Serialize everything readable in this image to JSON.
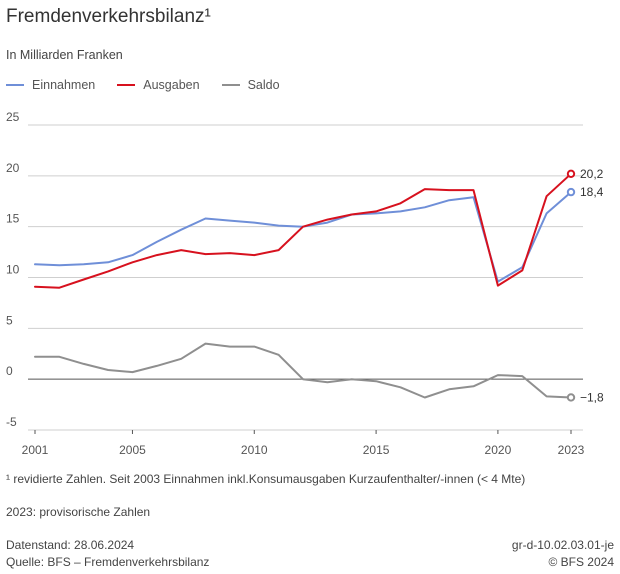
{
  "header": {
    "title": "Fremdenverkehrsbilanz¹",
    "subtitle": "In Milliarden Franken"
  },
  "footer": {
    "note1": "¹ revidierte Zahlen. Seit 2003 Einnahmen inkl.Konsumausgaben Kurzaufenthalter/-innen (< 4 Mte)",
    "note2": "2023: provisorische Zahlen",
    "datenstand": "Datenstand: 28.06.2024",
    "quelle": "Quelle: BFS – Fremdenverkehrsbilanz",
    "code": "gr-d-10.02.03.01-je",
    "copyright": "© BFS 2024"
  },
  "chart_data": {
    "type": "line",
    "x": [
      2001,
      2002,
      2003,
      2004,
      2005,
      2006,
      2007,
      2008,
      2009,
      2010,
      2011,
      2012,
      2013,
      2014,
      2015,
      2016,
      2017,
      2018,
      2019,
      2020,
      2021,
      2022,
      2023
    ],
    "xticks": [
      "2001",
      "2005",
      "2010",
      "2015",
      "2020",
      "2023"
    ],
    "yticks": [
      "-5",
      "0",
      "5",
      "10",
      "15",
      "20",
      "25"
    ],
    "ylim": [
      -5,
      25
    ],
    "xlim": [
      2001,
      2023
    ],
    "grid": true,
    "legend_position": "top-left",
    "series": [
      {
        "name": "Einnahmen",
        "color": "#6f8fd8",
        "values": [
          11.3,
          11.2,
          11.3,
          11.5,
          12.2,
          13.5,
          14.7,
          15.8,
          15.6,
          15.4,
          15.1,
          15.0,
          15.4,
          16.2,
          16.3,
          16.5,
          16.9,
          17.6,
          17.9,
          9.6,
          11.0,
          16.3,
          18.4
        ],
        "end_label": "18,4"
      },
      {
        "name": "Ausgaben",
        "color": "#d7111e",
        "values": [
          9.1,
          9.0,
          9.8,
          10.6,
          11.5,
          12.2,
          12.7,
          12.3,
          12.4,
          12.2,
          12.7,
          15.0,
          15.7,
          16.2,
          16.5,
          17.3,
          18.7,
          18.6,
          18.6,
          9.2,
          10.7,
          18.0,
          20.2
        ],
        "end_label": "20,2"
      },
      {
        "name": "Saldo",
        "color": "#8f8f8f",
        "values": [
          2.2,
          2.2,
          1.5,
          0.9,
          0.7,
          1.3,
          2.0,
          3.5,
          3.2,
          3.2,
          2.4,
          0.0,
          -0.3,
          0.0,
          -0.2,
          -0.8,
          -1.8,
          -1.0,
          -0.7,
          0.4,
          0.3,
          -1.7,
          -1.8
        ],
        "end_label": "−1,8"
      }
    ]
  }
}
